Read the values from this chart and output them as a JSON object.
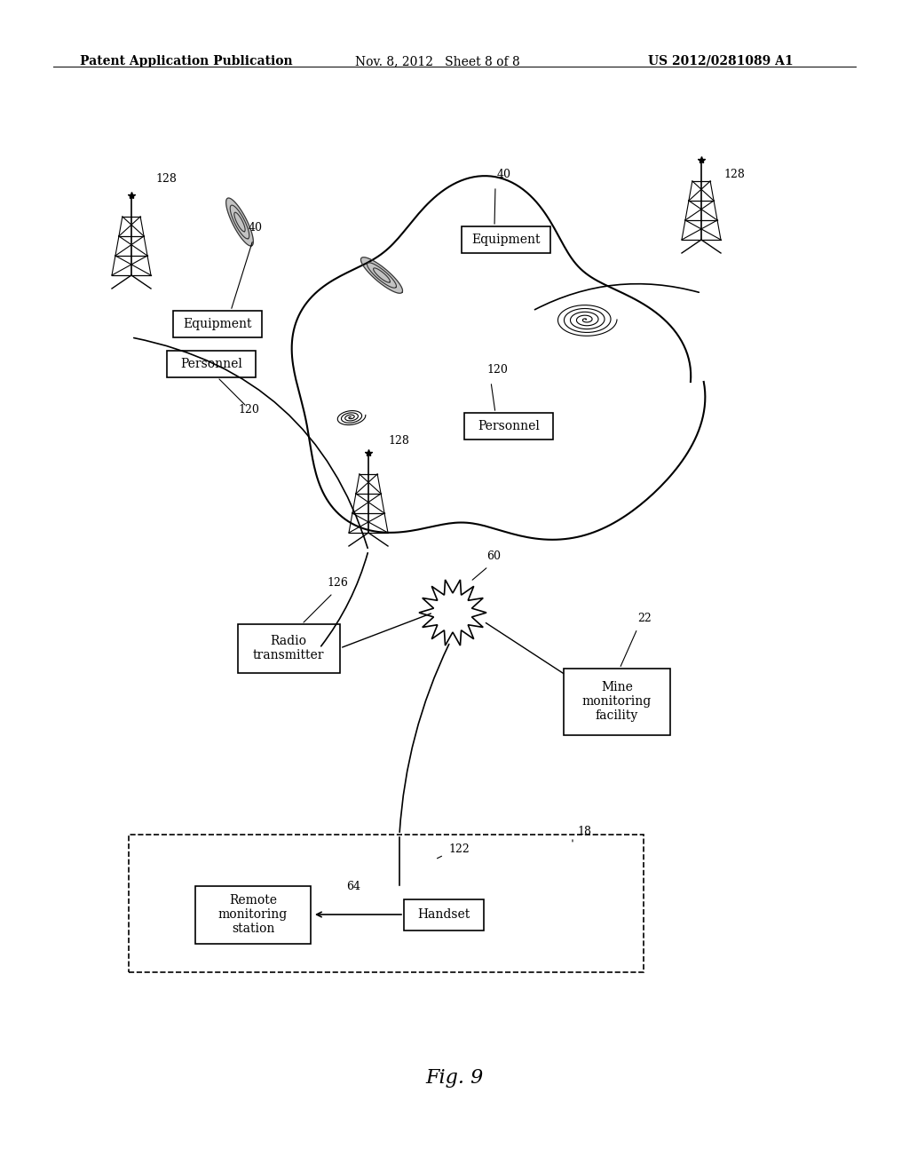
{
  "title": "Fig. 9",
  "header_left": "Patent Application Publication",
  "header_center": "Nov. 8, 2012   Sheet 8 of 8",
  "header_right": "US 2012/0281089 A1",
  "background_color": "#ffffff",
  "text_color": "#000000",
  "labels": {
    "equipment_label": "Equipment",
    "personnel_label": "Personnel",
    "radio_transmitter_label": "Radio\ntransmitter",
    "mine_monitoring_label": "Mine\nmonitoring\nfacility",
    "remote_monitoring_label": "Remote\nmonitoring\nstation",
    "handset_label": "Handset"
  },
  "ref_numbers": {
    "tower_tl": "128",
    "tower_tr": "128",
    "tower_mid": "128",
    "equip_tl": "40",
    "equip_tr": "40",
    "personnel_tl": "120",
    "personnel_mid": "120",
    "radio_tx": "126",
    "mine_mon": "22",
    "handset": "122",
    "remote_mon": "18",
    "burst": "60",
    "arrow_64": "64"
  }
}
